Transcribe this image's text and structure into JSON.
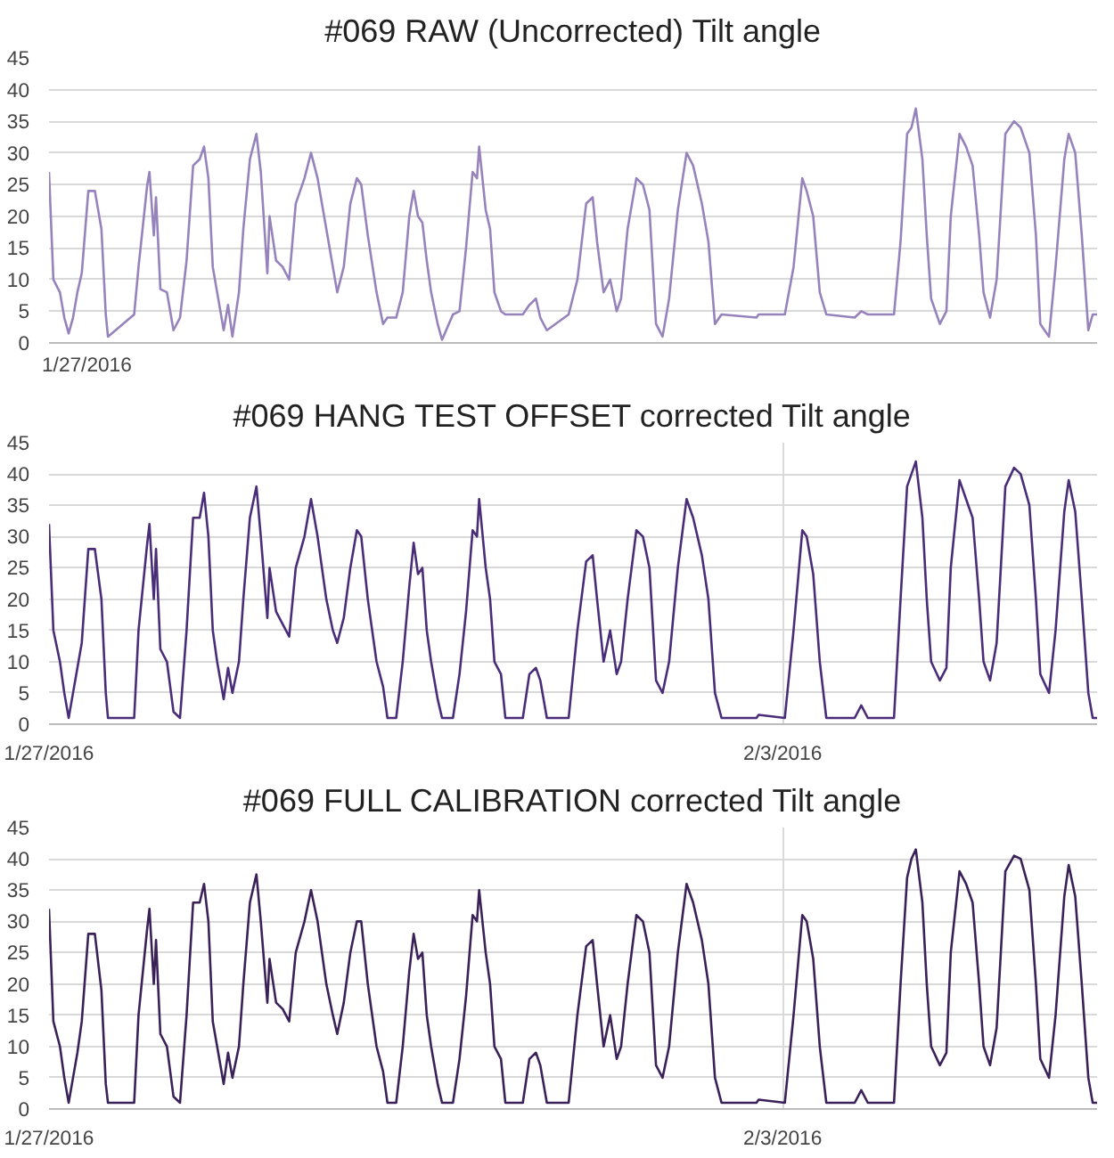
{
  "chart_data": [
    {
      "type": "line",
      "title": "#069 RAW (Uncorrected) Tilt angle",
      "xlim": [
        "2016-01-27T00:00",
        "2016-02-06T00:00"
      ],
      "ylim": [
        0,
        45
      ],
      "yticks": [
        0,
        5,
        10,
        15,
        20,
        25,
        30,
        35,
        40,
        45
      ],
      "tick_labels": "y",
      "annotations": [
        "1/27/2016"
      ],
      "grid": "y",
      "marker": "none",
      "line_style": "solid",
      "x": [
        "2016-01-27T00:00",
        "2016-01-27T01:00",
        "2016-01-27T02:30",
        "2016-01-27T03:30",
        "2016-01-27T04:30",
        "2016-01-27T05:30",
        "2016-01-27T06:30",
        "2016-01-27T07:30",
        "2016-01-27T09:00",
        "2016-01-27T10:30",
        "2016-01-27T12:00",
        "2016-01-27T13:00",
        "2016-01-27T13:30",
        "2016-01-27T19:30",
        "2016-01-27T20:30",
        "2016-01-27T22:30",
        "2016-01-27T23:00",
        "2016-01-28T00:00",
        "2016-01-28T00:30",
        "2016-01-28T01:30",
        "2016-01-28T03:00",
        "2016-01-28T04:30",
        "2016-01-28T06:00",
        "2016-01-28T07:30",
        "2016-01-28T09:00",
        "2016-01-28T10:30",
        "2016-01-28T11:30",
        "2016-01-28T12:30",
        "2016-01-28T13:30",
        "2016-01-28T14:30",
        "2016-01-28T16:00",
        "2016-01-28T17:00",
        "2016-01-28T18:00",
        "2016-01-28T19:30",
        "2016-01-28T20:30",
        "2016-01-28T22:00",
        "2016-01-28T23:30",
        "2016-01-29T00:30",
        "2016-01-29T02:00",
        "2016-01-29T02:30",
        "2016-01-29T04:00",
        "2016-01-29T05:30",
        "2016-01-29T07:00",
        "2016-01-29T08:30",
        "2016-01-29T10:30",
        "2016-01-29T12:00",
        "2016-01-29T13:30",
        "2016-01-29T15:30",
        "2016-01-29T17:00",
        "2016-01-29T18:00",
        "2016-01-29T19:30",
        "2016-01-29T21:00",
        "2016-01-29T22:30",
        "2016-01-29T23:30",
        "2016-01-30T01:00",
        "2016-01-30T03:00",
        "2016-01-30T04:30",
        "2016-01-30T05:30",
        "2016-01-30T07:30",
        "2016-01-30T09:00",
        "2016-01-30T10:30",
        "2016-01-30T11:30",
        "2016-01-30T12:30",
        "2016-01-30T13:30",
        "2016-01-30T14:30",
        "2016-01-30T15:30",
        "2016-01-30T17:00",
        "2016-01-30T18:00",
        "2016-01-30T20:30",
        "2016-01-30T22:00",
        "2016-01-30T23:30",
        "2016-01-31T01:00",
        "2016-01-31T02:00",
        "2016-01-31T02:30",
        "2016-01-31T04:00",
        "2016-01-31T05:00",
        "2016-01-31T06:00",
        "2016-01-31T07:30",
        "2016-01-31T08:30",
        "2016-01-31T12:30",
        "2016-01-31T14:00",
        "2016-01-31T15:30",
        "2016-01-31T16:30",
        "2016-01-31T18:00",
        "2016-01-31T23:00",
        "2016-02-01T01:00",
        "2016-02-01T03:00",
        "2016-02-01T04:30",
        "2016-02-01T05:30",
        "2016-02-01T07:00",
        "2016-02-01T08:30",
        "2016-02-01T10:00",
        "2016-02-01T11:00",
        "2016-02-01T12:30",
        "2016-02-01T14:30",
        "2016-02-01T16:00",
        "2016-02-01T17:30",
        "2016-02-01T19:00",
        "2016-02-01T20:30",
        "2016-02-01T22:00",
        "2016-02-02T00:00",
        "2016-02-02T02:00",
        "2016-02-02T03:30",
        "2016-02-02T05:30",
        "2016-02-02T07:00",
        "2016-02-02T08:30",
        "2016-02-02T10:00",
        "2016-02-02T18:00",
        "2016-02-02T18:30",
        "2016-02-03T00:30",
        "2016-02-03T02:30",
        "2016-02-03T04:30",
        "2016-02-03T05:30",
        "2016-02-03T07:00",
        "2016-02-03T08:30",
        "2016-02-03T10:00",
        "2016-02-03T16:30",
        "2016-02-03T18:00",
        "2016-02-03T19:30",
        "2016-02-04T01:30",
        "2016-02-04T03:00",
        "2016-02-04T04:30",
        "2016-02-04T05:30",
        "2016-02-04T06:30",
        "2016-02-04T08:00",
        "2016-02-04T09:00",
        "2016-02-04T10:00",
        "2016-02-04T12:00",
        "2016-02-04T13:30",
        "2016-02-04T14:30",
        "2016-02-04T16:30",
        "2016-02-04T18:00",
        "2016-02-04T19:30",
        "2016-02-04T21:00",
        "2016-02-04T22:00",
        "2016-02-04T23:30",
        "2016-02-05T01:00",
        "2016-02-05T03:00",
        "2016-02-05T05:00",
        "2016-02-05T06:30",
        "2016-02-05T08:30",
        "2016-02-05T10:00",
        "2016-02-05T11:00",
        "2016-02-05T13:00",
        "2016-02-05T14:30",
        "2016-02-05T16:30",
        "2016-02-05T17:30",
        "2016-02-05T19:00",
        "2016-02-05T20:30",
        "2016-02-05T22:00",
        "2016-02-05T23:00",
        "2016-02-06T00:00"
      ],
      "series": [
        {
          "color": "#9683bb",
          "values": [
            27,
            10,
            8,
            4,
            1.5,
            4,
            8,
            11,
            24,
            24,
            18,
            4.5,
            1,
            4.5,
            12,
            25,
            27,
            17,
            23,
            8.5,
            8,
            2,
            4,
            13,
            28,
            29,
            31,
            26,
            12,
            8,
            2,
            6,
            1,
            8,
            18,
            29,
            33,
            27,
            11,
            20,
            13,
            12,
            10,
            22,
            26,
            30,
            26,
            18,
            12,
            8,
            12,
            22,
            26,
            25,
            17,
            8,
            3,
            4,
            4,
            8,
            20,
            24,
            20,
            19,
            13,
            8,
            3,
            0.5,
            4.5,
            5,
            15,
            27,
            26,
            31,
            21,
            18,
            8,
            5,
            4.5,
            4.5,
            6,
            7,
            4,
            2,
            4.5,
            10,
            22,
            23,
            16,
            8,
            10,
            5,
            7,
            18,
            26,
            25,
            21,
            3,
            1,
            7,
            21,
            30,
            28,
            22,
            16,
            3,
            4.5,
            4,
            4.5,
            4.5,
            12,
            26,
            24,
            20,
            8,
            4.5,
            4,
            5,
            4.5,
            4.5,
            16,
            33,
            34,
            37,
            29,
            17,
            7,
            3,
            5,
            20,
            33,
            31,
            28,
            17,
            8,
            4,
            10,
            33,
            35,
            34,
            30,
            17,
            3,
            1,
            12,
            29,
            33,
            30,
            17,
            2,
            4.5,
            4.5
          ]
        }
      ]
    },
    {
      "type": "line",
      "title": "#069 HANG TEST OFFSET corrected Tilt angle",
      "xlim": [
        "2016-01-27T00:00",
        "2016-02-06T00:00"
      ],
      "ylim": [
        0,
        45
      ],
      "yticks": [
        0,
        5,
        10,
        15,
        20,
        25,
        30,
        35,
        40,
        45
      ],
      "xticks": [
        {
          "value": "2016-01-27T00:00",
          "label": "1/27/2016"
        },
        {
          "value": "2016-02-03T00:00",
          "label": "2/3/2016"
        }
      ],
      "grid": true,
      "marker": "none",
      "line_style": "solid",
      "x": [
        "2016-01-27T00:00",
        "2016-01-27T01:00",
        "2016-01-27T02:30",
        "2016-01-27T03:30",
        "2016-01-27T04:30",
        "2016-01-27T05:30",
        "2016-01-27T06:30",
        "2016-01-27T07:30",
        "2016-01-27T09:00",
        "2016-01-27T10:30",
        "2016-01-27T12:00",
        "2016-01-27T13:00",
        "2016-01-27T13:30",
        "2016-01-27T19:30",
        "2016-01-27T20:30",
        "2016-01-27T22:30",
        "2016-01-27T23:00",
        "2016-01-28T00:00",
        "2016-01-28T00:30",
        "2016-01-28T01:30",
        "2016-01-28T03:00",
        "2016-01-28T04:30",
        "2016-01-28T06:00",
        "2016-01-28T07:30",
        "2016-01-28T09:00",
        "2016-01-28T10:30",
        "2016-01-28T11:30",
        "2016-01-28T12:30",
        "2016-01-28T13:30",
        "2016-01-28T14:30",
        "2016-01-28T16:00",
        "2016-01-28T17:00",
        "2016-01-28T18:00",
        "2016-01-28T19:30",
        "2016-01-28T20:30",
        "2016-01-28T22:00",
        "2016-01-28T23:30",
        "2016-01-29T00:30",
        "2016-01-29T02:00",
        "2016-01-29T02:30",
        "2016-01-29T04:00",
        "2016-01-29T05:30",
        "2016-01-29T07:00",
        "2016-01-29T08:30",
        "2016-01-29T10:30",
        "2016-01-29T12:00",
        "2016-01-29T13:30",
        "2016-01-29T15:30",
        "2016-01-29T17:00",
        "2016-01-29T18:00",
        "2016-01-29T19:30",
        "2016-01-29T21:00",
        "2016-01-29T22:30",
        "2016-01-29T23:30",
        "2016-01-30T01:00",
        "2016-01-30T03:00",
        "2016-01-30T04:30",
        "2016-01-30T05:30",
        "2016-01-30T07:30",
        "2016-01-30T09:00",
        "2016-01-30T10:30",
        "2016-01-30T11:30",
        "2016-01-30T12:30",
        "2016-01-30T13:30",
        "2016-01-30T14:30",
        "2016-01-30T15:30",
        "2016-01-30T17:00",
        "2016-01-30T18:00",
        "2016-01-30T20:30",
        "2016-01-30T22:00",
        "2016-01-30T23:30",
        "2016-01-31T01:00",
        "2016-01-31T02:00",
        "2016-01-31T02:30",
        "2016-01-31T04:00",
        "2016-01-31T05:00",
        "2016-01-31T06:00",
        "2016-01-31T07:30",
        "2016-01-31T08:30",
        "2016-01-31T12:30",
        "2016-01-31T14:00",
        "2016-01-31T15:30",
        "2016-01-31T16:30",
        "2016-01-31T18:00",
        "2016-01-31T23:00",
        "2016-02-01T01:00",
        "2016-02-01T03:00",
        "2016-02-01T04:30",
        "2016-02-01T05:30",
        "2016-02-01T07:00",
        "2016-02-01T08:30",
        "2016-02-01T10:00",
        "2016-02-01T11:00",
        "2016-02-01T12:30",
        "2016-02-01T14:30",
        "2016-02-01T16:00",
        "2016-02-01T17:30",
        "2016-02-01T19:00",
        "2016-02-01T20:30",
        "2016-02-01T22:00",
        "2016-02-02T00:00",
        "2016-02-02T02:00",
        "2016-02-02T03:30",
        "2016-02-02T05:30",
        "2016-02-02T07:00",
        "2016-02-02T08:30",
        "2016-02-02T10:00",
        "2016-02-02T18:00",
        "2016-02-02T18:30",
        "2016-02-03T00:30",
        "2016-02-03T02:30",
        "2016-02-03T04:30",
        "2016-02-03T05:30",
        "2016-02-03T07:00",
        "2016-02-03T08:30",
        "2016-02-03T10:00",
        "2016-02-03T16:30",
        "2016-02-03T18:00",
        "2016-02-03T19:30",
        "2016-02-04T01:30",
        "2016-02-04T03:00",
        "2016-02-04T04:30",
        "2016-02-04T05:30",
        "2016-02-04T06:30",
        "2016-02-04T08:00",
        "2016-02-04T09:00",
        "2016-02-04T10:00",
        "2016-02-04T12:00",
        "2016-02-04T13:30",
        "2016-02-04T14:30",
        "2016-02-04T16:30",
        "2016-02-04T18:00",
        "2016-02-04T19:30",
        "2016-02-04T21:00",
        "2016-02-04T22:00",
        "2016-02-04T23:30",
        "2016-02-05T01:00",
        "2016-02-05T03:00",
        "2016-02-05T05:00",
        "2016-02-05T06:30",
        "2016-02-05T08:30",
        "2016-02-05T10:00",
        "2016-02-05T11:00",
        "2016-02-05T13:00",
        "2016-02-05T14:30",
        "2016-02-05T16:30",
        "2016-02-05T17:30",
        "2016-02-05T19:00",
        "2016-02-05T20:30",
        "2016-02-05T22:00",
        "2016-02-05T23:00",
        "2016-02-06T00:00"
      ],
      "series": [
        {
          "color": "#4a2d78",
          "values": [
            32,
            15,
            10,
            5,
            1,
            5,
            9,
            13,
            28,
            28,
            20,
            5,
            1,
            1,
            15,
            29,
            32,
            20,
            28,
            12,
            10,
            2,
            1,
            15,
            33,
            33,
            37,
            30,
            15,
            10,
            4,
            9,
            5,
            10,
            20,
            33,
            38,
            30,
            17,
            25,
            18,
            16,
            14,
            25,
            30,
            36,
            30,
            20,
            15,
            13,
            17,
            25,
            31,
            30,
            20,
            10,
            6,
            1,
            1,
            10,
            22,
            29,
            24,
            25,
            15,
            10,
            4,
            1,
            1,
            8,
            18,
            31,
            30,
            36,
            25,
            20,
            10,
            8,
            1,
            1,
            8,
            9,
            7,
            1,
            1,
            15,
            26,
            27,
            20,
            10,
            15,
            8,
            10,
            20,
            31,
            30,
            25,
            7,
            5,
            10,
            25,
            36,
            33,
            27,
            20,
            5,
            1,
            1,
            1.5,
            1,
            15,
            31,
            30,
            24,
            10,
            1,
            1,
            3,
            1,
            1,
            20,
            38,
            40,
            42,
            33,
            20,
            10,
            7,
            9,
            25,
            39,
            36,
            33,
            20,
            10,
            7,
            13,
            38,
            41,
            40,
            35,
            20,
            8,
            5,
            15,
            34,
            39,
            34,
            20,
            5,
            1,
            1
          ]
        }
      ]
    },
    {
      "type": "line",
      "title": "#069 FULL CALIBRATION corrected Tilt angle",
      "xlim": [
        "2016-01-27T00:00",
        "2016-02-06T00:00"
      ],
      "ylim": [
        0,
        45
      ],
      "yticks": [
        0,
        5,
        10,
        15,
        20,
        25,
        30,
        35,
        40,
        45
      ],
      "xticks": [
        {
          "value": "2016-01-27T00:00",
          "label": "1/27/2016"
        },
        {
          "value": "2016-02-03T00:00",
          "label": "2/3/2016"
        }
      ],
      "grid": true,
      "marker": "none",
      "line_style": "solid",
      "x": [
        "2016-01-27T00:00",
        "2016-01-27T01:00",
        "2016-01-27T02:30",
        "2016-01-27T03:30",
        "2016-01-27T04:30",
        "2016-01-27T05:30",
        "2016-01-27T06:30",
        "2016-01-27T07:30",
        "2016-01-27T09:00",
        "2016-01-27T10:30",
        "2016-01-27T12:00",
        "2016-01-27T13:00",
        "2016-01-27T13:30",
        "2016-01-27T19:30",
        "2016-01-27T20:30",
        "2016-01-27T22:30",
        "2016-01-27T23:00",
        "2016-01-28T00:00",
        "2016-01-28T00:30",
        "2016-01-28T01:30",
        "2016-01-28T03:00",
        "2016-01-28T04:30",
        "2016-01-28T06:00",
        "2016-01-28T07:30",
        "2016-01-28T09:00",
        "2016-01-28T10:30",
        "2016-01-28T11:30",
        "2016-01-28T12:30",
        "2016-01-28T13:30",
        "2016-01-28T14:30",
        "2016-01-28T16:00",
        "2016-01-28T17:00",
        "2016-01-28T18:00",
        "2016-01-28T19:30",
        "2016-01-28T20:30",
        "2016-01-28T22:00",
        "2016-01-28T23:30",
        "2016-01-29T00:30",
        "2016-01-29T02:00",
        "2016-01-29T02:30",
        "2016-01-29T04:00",
        "2016-01-29T05:30",
        "2016-01-29T07:00",
        "2016-01-29T08:30",
        "2016-01-29T10:30",
        "2016-01-29T12:00",
        "2016-01-29T13:30",
        "2016-01-29T15:30",
        "2016-01-29T17:00",
        "2016-01-29T18:00",
        "2016-01-29T19:30",
        "2016-01-29T21:00",
        "2016-01-29T22:30",
        "2016-01-29T23:30",
        "2016-01-30T01:00",
        "2016-01-30T03:00",
        "2016-01-30T04:30",
        "2016-01-30T05:30",
        "2016-01-30T07:30",
        "2016-01-30T09:00",
        "2016-01-30T10:30",
        "2016-01-30T11:30",
        "2016-01-30T12:30",
        "2016-01-30T13:30",
        "2016-01-30T14:30",
        "2016-01-30T15:30",
        "2016-01-30T17:00",
        "2016-01-30T18:00",
        "2016-01-30T20:30",
        "2016-01-30T22:00",
        "2016-01-30T23:30",
        "2016-01-31T01:00",
        "2016-01-31T02:00",
        "2016-01-31T02:30",
        "2016-01-31T04:00",
        "2016-01-31T05:00",
        "2016-01-31T06:00",
        "2016-01-31T07:30",
        "2016-01-31T08:30",
        "2016-01-31T12:30",
        "2016-01-31T14:00",
        "2016-01-31T15:30",
        "2016-01-31T16:30",
        "2016-01-31T18:00",
        "2016-01-31T23:00",
        "2016-02-01T01:00",
        "2016-02-01T03:00",
        "2016-02-01T04:30",
        "2016-02-01T05:30",
        "2016-02-01T07:00",
        "2016-02-01T08:30",
        "2016-02-01T10:00",
        "2016-02-01T11:00",
        "2016-02-01T12:30",
        "2016-02-01T14:30",
        "2016-02-01T16:00",
        "2016-02-01T17:30",
        "2016-02-01T19:00",
        "2016-02-01T20:30",
        "2016-02-01T22:00",
        "2016-02-02T00:00",
        "2016-02-02T02:00",
        "2016-02-02T03:30",
        "2016-02-02T05:30",
        "2016-02-02T07:00",
        "2016-02-02T08:30",
        "2016-02-02T10:00",
        "2016-02-02T18:00",
        "2016-02-02T18:30",
        "2016-02-03T00:30",
        "2016-02-03T02:30",
        "2016-02-03T04:30",
        "2016-02-03T05:30",
        "2016-02-03T07:00",
        "2016-02-03T08:30",
        "2016-02-03T10:00",
        "2016-02-03T16:30",
        "2016-02-03T18:00",
        "2016-02-03T19:30",
        "2016-02-04T01:30",
        "2016-02-04T03:00",
        "2016-02-04T04:30",
        "2016-02-04T05:30",
        "2016-02-04T06:30",
        "2016-02-04T08:00",
        "2016-02-04T09:00",
        "2016-02-04T10:00",
        "2016-02-04T12:00",
        "2016-02-04T13:30",
        "2016-02-04T14:30",
        "2016-02-04T16:30",
        "2016-02-04T18:00",
        "2016-02-04T19:30",
        "2016-02-04T21:00",
        "2016-02-04T22:00",
        "2016-02-04T23:30",
        "2016-02-05T01:00",
        "2016-02-05T03:00",
        "2016-02-05T05:00",
        "2016-02-05T06:30",
        "2016-02-05T08:30",
        "2016-02-05T10:00",
        "2016-02-05T11:00",
        "2016-02-05T13:00",
        "2016-02-05T14:30",
        "2016-02-05T16:30",
        "2016-02-05T17:30",
        "2016-02-05T19:00",
        "2016-02-05T20:30",
        "2016-02-05T22:00",
        "2016-02-05T23:00",
        "2016-02-06T00:00"
      ],
      "series": [
        {
          "color": "#3a2157",
          "values": [
            32,
            14,
            10,
            5,
            1,
            5,
            9,
            14,
            28,
            28,
            19,
            4,
            1,
            1,
            15,
            29,
            32,
            20,
            27,
            12,
            10,
            2,
            1,
            15,
            33,
            33,
            36,
            30,
            14,
            10,
            4,
            9,
            5,
            10,
            20,
            33,
            37.5,
            30,
            17,
            24,
            17,
            16,
            14,
            25,
            30,
            35,
            30,
            20,
            15,
            12,
            17,
            25,
            30,
            30,
            20,
            10,
            6,
            1,
            1,
            10,
            22,
            28,
            24,
            25,
            15,
            10,
            4,
            1,
            1,
            8,
            18,
            31,
            30,
            35,
            25,
            20,
            10,
            8,
            1,
            1,
            8,
            9,
            7,
            1,
            1,
            15,
            26,
            27,
            20,
            10,
            15,
            8,
            10,
            20,
            31,
            30,
            25,
            7,
            5,
            10,
            25,
            36,
            33,
            27,
            20,
            5,
            1,
            1,
            1.5,
            1,
            15,
            31,
            30,
            24,
            10,
            1,
            1,
            3,
            1,
            1,
            20,
            37,
            40,
            41.5,
            33,
            20,
            10,
            7,
            9,
            25,
            38,
            36,
            33,
            20,
            10,
            7,
            13,
            38,
            40.5,
            40,
            35,
            20,
            8,
            5,
            15,
            34,
            39,
            34,
            20,
            5,
            1,
            1
          ]
        }
      ]
    }
  ]
}
